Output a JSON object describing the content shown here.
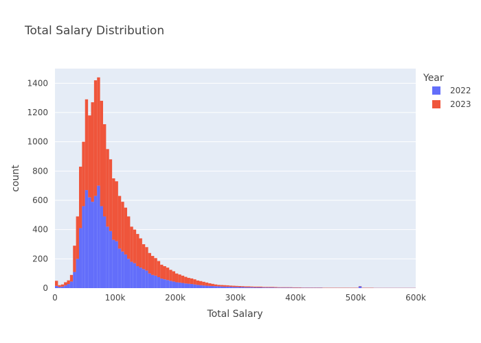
{
  "chart_data": {
    "type": "histogram",
    "barmode": "stack",
    "title": "Total Salary Distribution",
    "xlabel": "Total Salary",
    "ylabel": "count",
    "xlim": [
      0,
      600000
    ],
    "ylim": [
      0,
      1500
    ],
    "bin_width": 5000,
    "x_ticks": [
      0,
      100000,
      200000,
      300000,
      400000,
      500000,
      600000
    ],
    "x_tick_labels": [
      "0",
      "100k",
      "200k",
      "300k",
      "400k",
      "500k",
      "600k"
    ],
    "y_ticks": [
      0,
      200,
      400,
      600,
      800,
      1000,
      1200,
      1400
    ],
    "y_tick_labels": [
      "0",
      "200",
      "400",
      "600",
      "800",
      "1000",
      "1200",
      "1400"
    ],
    "legend": {
      "title": "Year",
      "placement": "right"
    },
    "series": [
      {
        "name": "2022",
        "color": "#636efa",
        "values": [
          15,
          8,
          10,
          18,
          28,
          45,
          110,
          200,
          410,
          560,
          670,
          620,
          590,
          630,
          700,
          560,
          490,
          420,
          390,
          330,
          320,
          270,
          250,
          230,
          200,
          180,
          170,
          150,
          140,
          130,
          120,
          100,
          90,
          85,
          75,
          65,
          60,
          55,
          50,
          45,
          40,
          38,
          35,
          32,
          30,
          28,
          25,
          22,
          20,
          18,
          16,
          15,
          14,
          13,
          12,
          11,
          10,
          10,
          9,
          8,
          8,
          7,
          7,
          6,
          6,
          6,
          5,
          5,
          5,
          4,
          4,
          4,
          4,
          3,
          3,
          3,
          3,
          3,
          3,
          2,
          2,
          2,
          2,
          2,
          2,
          2,
          2,
          2,
          2,
          1,
          1,
          1,
          1,
          1,
          1,
          1,
          1,
          1,
          1,
          1,
          1,
          12,
          1,
          1,
          1,
          1,
          1,
          1,
          1,
          1,
          1,
          1,
          1,
          1,
          1,
          1,
          1,
          1,
          1,
          1
        ]
      },
      {
        "name": "2023",
        "color": "#ef553b",
        "values": [
          35,
          12,
          15,
          22,
          25,
          45,
          180,
          290,
          420,
          440,
          620,
          560,
          680,
          790,
          740,
          720,
          630,
          530,
          490,
          420,
          410,
          360,
          340,
          320,
          290,
          240,
          230,
          220,
          200,
          170,
          160,
          140,
          130,
          120,
          110,
          95,
          90,
          85,
          75,
          70,
          60,
          55,
          50,
          45,
          40,
          38,
          35,
          30,
          28,
          25,
          22,
          18,
          15,
          12,
          10,
          10,
          10,
          9,
          8,
          8,
          7,
          7,
          6,
          6,
          6,
          5,
          5,
          5,
          5,
          4,
          4,
          4,
          4,
          4,
          3,
          3,
          3,
          3,
          3,
          3,
          3,
          3,
          2,
          2,
          2,
          2,
          2,
          2,
          2,
          2,
          2,
          2,
          2,
          2,
          2,
          2,
          2,
          2,
          2,
          2,
          2,
          2,
          2,
          2,
          2,
          2,
          1,
          1,
          1,
          1,
          1,
          1,
          1,
          1,
          1,
          1,
          1,
          1,
          1,
          1
        ]
      }
    ]
  }
}
